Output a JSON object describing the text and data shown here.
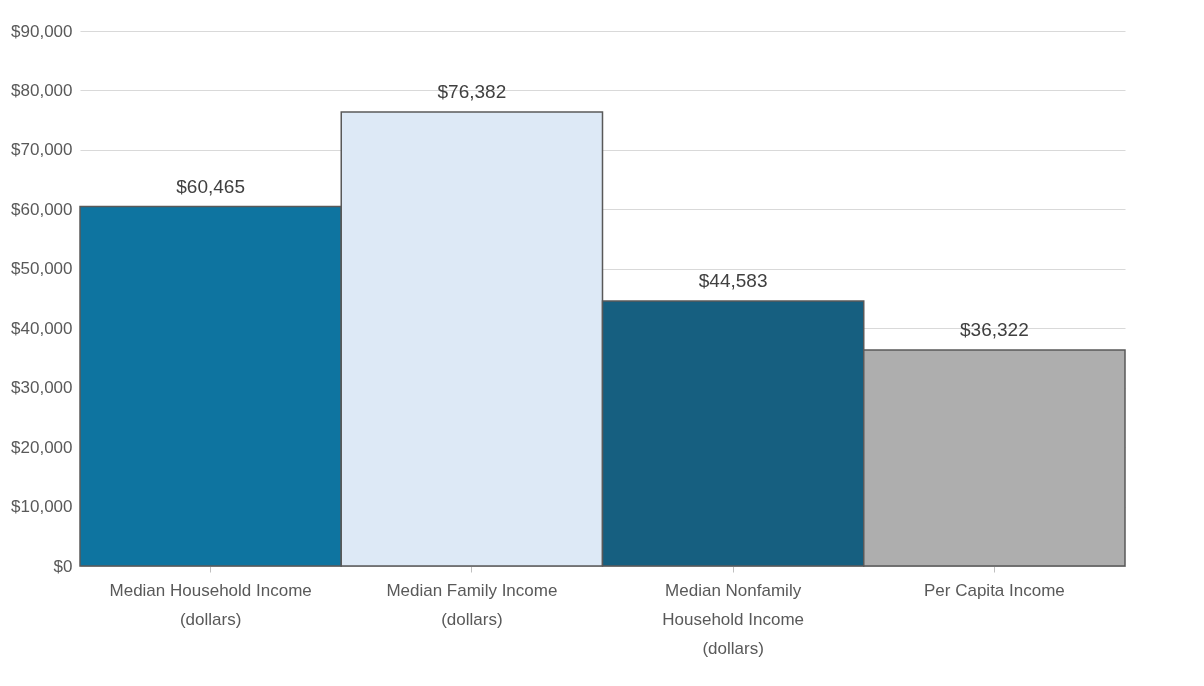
{
  "chart_data": {
    "type": "bar",
    "categories": [
      "Median Household Income (dollars)",
      "Median Family Income (dollars)",
      "Median Nonfamily Household Income (dollars)",
      "Per Capita Income"
    ],
    "values": [
      60465,
      76382,
      44583,
      36322
    ],
    "colors": [
      "#0e74a0",
      "#dde9f6",
      "#165f80",
      "#aeaeae"
    ],
    "ylim": [
      0,
      90000
    ],
    "yticks": [
      {
        "value": 0,
        "label": "$0"
      },
      {
        "value": 10000,
        "label": "$10,000"
      },
      {
        "value": 20000,
        "label": "$20,000"
      },
      {
        "value": 30000,
        "label": "$30,000"
      },
      {
        "value": 40000,
        "label": "$40,000"
      },
      {
        "value": 50000,
        "label": "$50,000"
      },
      {
        "value": 60000,
        "label": "$60,000"
      },
      {
        "value": 70000,
        "label": "$70,000"
      },
      {
        "value": 80000,
        "label": "$80,000"
      },
      {
        "value": 90000,
        "label": "$90,000"
      }
    ],
    "value_labels": [
      "$60,465",
      "$76,382",
      "$44,583",
      "$36,322"
    ],
    "grid": "y"
  }
}
